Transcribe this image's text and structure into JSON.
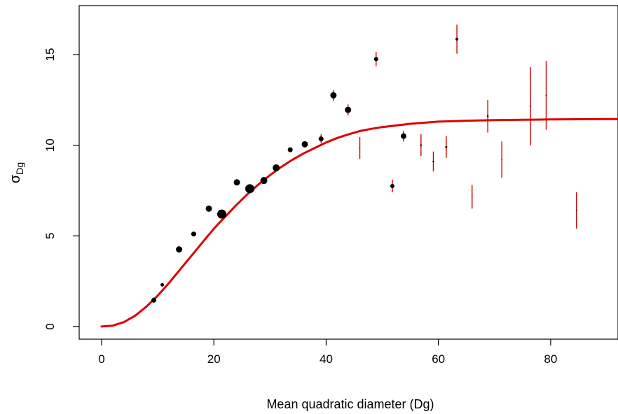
{
  "chart_data": {
    "type": "scatter",
    "title": "",
    "xlabel": "Mean quadratic diameter (Dg)",
    "ylabel": {
      "base": "σ",
      "sub": "Dg"
    },
    "xlim": [
      -4,
      92
    ],
    "ylim": [
      -0.7,
      17.7
    ],
    "x_ticks": [
      0,
      20,
      40,
      60,
      80
    ],
    "y_ticks": [
      0,
      5,
      10,
      15
    ],
    "grid": false,
    "legend": "none",
    "colors": {
      "points": "#000000",
      "error_bars": "#cc0000",
      "curve": "#dd0000"
    },
    "points": [
      {
        "x": 9.3,
        "y": 1.45,
        "size": 3.5,
        "err": 0.15
      },
      {
        "x": 10.8,
        "y": 2.3,
        "size": 2.5,
        "err": 0.1
      },
      {
        "x": 13.8,
        "y": 4.25,
        "size": 4.5,
        "err": 0.15
      },
      {
        "x": 16.4,
        "y": 5.1,
        "size": 3.5,
        "err": 0.1
      },
      {
        "x": 19.1,
        "y": 6.5,
        "size": 4.5,
        "err": 0.12
      },
      {
        "x": 21.4,
        "y": 6.2,
        "size": 6.5,
        "err": 0.12
      },
      {
        "x": 24.1,
        "y": 7.95,
        "size": 4.5,
        "err": 0.12
      },
      {
        "x": 26.4,
        "y": 7.6,
        "size": 6.5,
        "err": 0.15
      },
      {
        "x": 28.9,
        "y": 8.05,
        "size": 5,
        "err": 0.15
      },
      {
        "x": 31.1,
        "y": 8.75,
        "size": 5,
        "err": 0.15
      },
      {
        "x": 33.6,
        "y": 9.75,
        "size": 3.5,
        "err": 0.12
      },
      {
        "x": 36.2,
        "y": 10.05,
        "size": 4.5,
        "err": 0.15
      },
      {
        "x": 39.1,
        "y": 10.35,
        "size": 3.5,
        "err": 0.25
      },
      {
        "x": 41.3,
        "y": 12.75,
        "size": 4.5,
        "err": 0.3
      },
      {
        "x": 43.9,
        "y": 11.95,
        "size": 4.5,
        "err": 0.3
      },
      {
        "x": 46.0,
        "y": 9.85,
        "size": 0.8,
        "err": 0.6
      },
      {
        "x": 48.9,
        "y": 14.75,
        "size": 3,
        "err": 0.4
      },
      {
        "x": 51.8,
        "y": 7.75,
        "size": 3,
        "err": 0.35
      },
      {
        "x": 53.8,
        "y": 10.5,
        "size": 4,
        "err": 0.3
      },
      {
        "x": 56.9,
        "y": 10.0,
        "size": 1.2,
        "err": 0.6
      },
      {
        "x": 59.1,
        "y": 9.1,
        "size": 1.2,
        "err": 0.55
      },
      {
        "x": 61.4,
        "y": 9.9,
        "size": 1.5,
        "err": 0.6
      },
      {
        "x": 63.3,
        "y": 15.85,
        "size": 2,
        "err": 0.8
      },
      {
        "x": 66.0,
        "y": 7.15,
        "size": 0.8,
        "err": 0.65
      },
      {
        "x": 68.8,
        "y": 11.6,
        "size": 1.2,
        "err": 0.9
      },
      {
        "x": 71.3,
        "y": 9.2,
        "size": 0.8,
        "err": 1.0
      },
      {
        "x": 76.4,
        "y": 12.15,
        "size": 0.8,
        "err": 2.15
      },
      {
        "x": 79.2,
        "y": 12.75,
        "size": 0.8,
        "err": 1.9
      },
      {
        "x": 84.6,
        "y": 6.4,
        "size": 0.8,
        "err": 1.0
      }
    ],
    "fitted_curve": {
      "x": [
        0,
        2,
        4,
        6,
        8,
        10,
        12,
        14,
        16,
        18,
        20,
        22,
        24,
        26,
        28,
        30,
        32,
        34,
        36,
        38,
        40,
        42,
        44,
        46,
        48,
        50,
        55,
        60,
        65,
        70,
        75,
        80,
        85,
        90,
        92
      ],
      "y": [
        0.0,
        0.05,
        0.25,
        0.6,
        1.1,
        1.7,
        2.4,
        3.15,
        3.9,
        4.65,
        5.4,
        6.05,
        6.7,
        7.3,
        7.85,
        8.35,
        8.8,
        9.2,
        9.55,
        9.85,
        10.15,
        10.4,
        10.6,
        10.78,
        10.9,
        11.0,
        11.18,
        11.3,
        11.35,
        11.38,
        11.4,
        11.42,
        11.43,
        11.44,
        11.44
      ]
    }
  }
}
